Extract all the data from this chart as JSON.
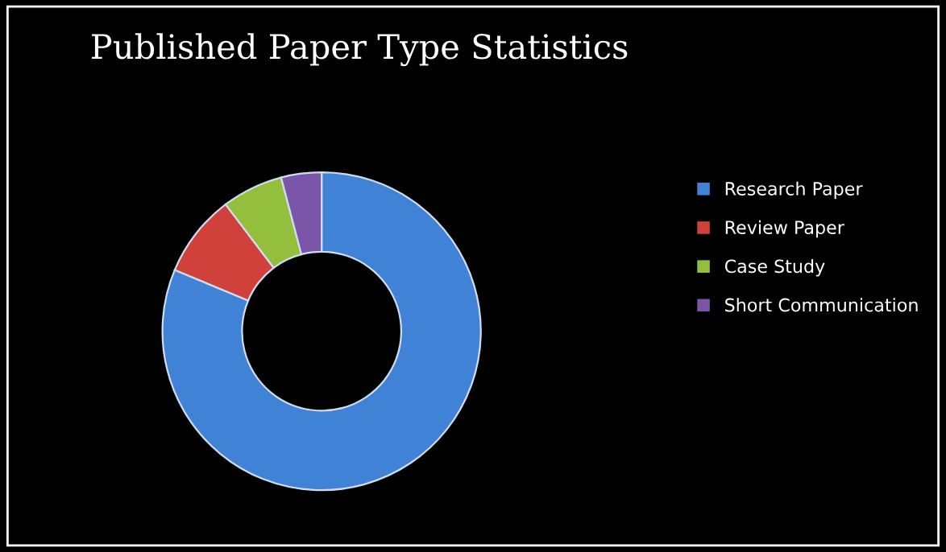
{
  "chart_data": {
    "type": "donut",
    "title": "Published Paper Type Statistics",
    "categories": [
      "Research Paper",
      "Review Paper",
      "Case Study",
      "Short Communication"
    ],
    "values": [
      81.3,
      8.4,
      6.2,
      4.1
    ],
    "colors": [
      "#3f82d6",
      "#d0413c",
      "#93bf3c",
      "#7b55a8"
    ],
    "legend": "right"
  }
}
